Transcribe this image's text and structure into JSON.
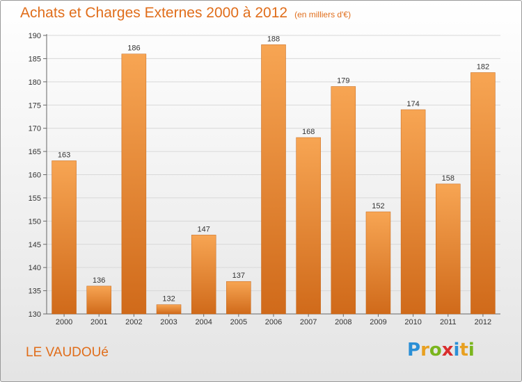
{
  "title": "Achats et Charges Externes 2000 à 2012",
  "unit": "(en milliers d'€)",
  "commune": "LE VAUDOUé",
  "logo": [
    "P",
    "r",
    "o",
    "x",
    "i",
    "t",
    "i"
  ],
  "logo_colors": [
    "#2a8fd6",
    "#e8a020",
    "#7ab51d",
    "#d92d2d",
    "#2a8fd6",
    "#e8a020",
    "#7ab51d"
  ],
  "colors": {
    "accent": "#e06d1a",
    "bar_top": "#f7a14d",
    "bar_bottom": "#d5711f",
    "grid": "#d8d8d8"
  },
  "chart_data": {
    "type": "bar",
    "categories": [
      "2000",
      "2001",
      "2002",
      "2003",
      "2004",
      "2005",
      "2006",
      "2007",
      "2008",
      "2009",
      "2010",
      "2011",
      "2012"
    ],
    "values": [
      163,
      136,
      186,
      132,
      147,
      137,
      188,
      168,
      179,
      152,
      174,
      158,
      182
    ],
    "ylim": [
      130,
      190
    ],
    "yticks": [
      130,
      135,
      140,
      145,
      150,
      155,
      160,
      165,
      170,
      175,
      180,
      185,
      190
    ],
    "grid": true,
    "title": "Achats et Charges Externes 2000 à 2012",
    "xlabel": "",
    "ylabel": ""
  }
}
